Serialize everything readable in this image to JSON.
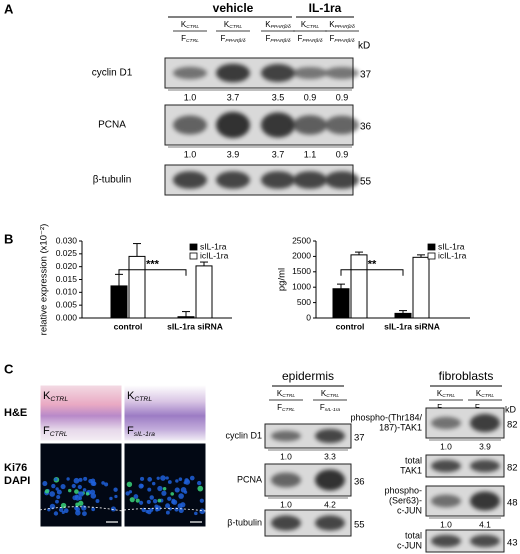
{
  "panel_a": {
    "label": "A",
    "groups": [
      "vehicle",
      "IL-1ra"
    ],
    "lanes": [
      {
        "k": {
          "main": "K",
          "sub": "CTRL"
        },
        "f": {
          "main": "F",
          "sub": "CTRL"
        }
      },
      {
        "k": {
          "main": "K",
          "sub": "CTRL"
        },
        "f": {
          "main": "F",
          "sub": "PPARβ/δ"
        }
      },
      {
        "k": {
          "main": "K",
          "sub": "PPARβ/δ"
        },
        "f": {
          "main": "F",
          "sub": "PPARβ/δ"
        }
      },
      {
        "k": {
          "main": "K",
          "sub": "CTRL"
        },
        "f": {
          "main": "F",
          "sub": "PPARβ/δ"
        }
      },
      {
        "k": {
          "main": "K",
          "sub": "PPARβ/δ"
        },
        "f": {
          "main": "F",
          "sub": "PPARβ/δ"
        }
      }
    ],
    "kd_label": "kD",
    "blots": [
      {
        "name": "cyclin D1",
        "kd": 37,
        "quant": [
          "1.0",
          "3.7",
          "3.5",
          "0.9",
          "0.9"
        ]
      },
      {
        "name": "PCNA",
        "kd": 36,
        "quant": [
          "1.0",
          "3.9",
          "3.7",
          "1.1",
          "0.9"
        ]
      },
      {
        "name": "β-tubulin",
        "kd": 55
      }
    ]
  },
  "panel_b": {
    "label": "B",
    "charts": [
      {
        "type": "bar",
        "y_label": "relative expression (x10⁻²)",
        "categories": [
          "control",
          "sIL-1ra siRNA"
        ],
        "series": [
          {
            "name": "sIL-1ra",
            "color": "#000000",
            "values": [
              0.0125,
              0.0005
            ],
            "errors": [
              0.0045,
              0.002
            ]
          },
          {
            "name": "icIL-1ra",
            "color": "#ffffff",
            "values": [
              0.024,
              0.0203
            ],
            "errors": [
              0.005,
              0.0015
            ]
          }
        ],
        "ylim": [
          0,
          0.03
        ],
        "yticks": [
          {
            "value": 0,
            "label": "0.000"
          },
          {
            "value": 0.005,
            "label": "0.005"
          },
          {
            "value": 0.01,
            "label": "0.010"
          },
          {
            "value": 0.015,
            "label": "0.015"
          },
          {
            "value": 0.02,
            "label": "0.020"
          },
          {
            "value": 0.025,
            "label": "0.025"
          },
          {
            "value": 0.03,
            "label": "0.030"
          }
        ],
        "significance": "***"
      },
      {
        "type": "bar",
        "y_label": "pg/ml",
        "categories": [
          "control",
          "sIL-1ra siRNA"
        ],
        "series": [
          {
            "name": "sIL-1ra",
            "color": "#000000",
            "values": [
              950,
              150
            ],
            "errors": [
              150,
              90
            ]
          },
          {
            "name": "icIL-1ra",
            "color": "#ffffff",
            "values": [
              2050,
              1970
            ],
            "errors": [
              90,
              80
            ]
          }
        ],
        "ylim": [
          0,
          2500
        ],
        "yticks": [
          0,
          500,
          1000,
          1500,
          2000,
          2500
        ],
        "significance": "**"
      }
    ]
  },
  "panel_c": {
    "label": "C",
    "stains": [
      "H&E",
      "Ki76",
      "DAPI"
    ],
    "image_labels": [
      {
        "k": {
          "main": "K",
          "sub": "CTRL"
        },
        "f": {
          "main": "F",
          "sub": "CTRL"
        }
      },
      {
        "k": {
          "main": "K",
          "sub": "CTRL"
        },
        "f": {
          "main": "F",
          "sub": "sIL-1ra"
        }
      }
    ],
    "epidermis": {
      "title": "epidermis",
      "lanes": [
        {
          "k": {
            "main": "K",
            "sub": "CTRL"
          },
          "f": {
            "main": "F",
            "sub": "CTRL"
          }
        },
        {
          "k": {
            "main": "K",
            "sub": "CTRL"
          },
          "f": {
            "main": "F",
            "sub": "sIL-1ra"
          }
        }
      ],
      "blots": [
        {
          "name": [
            "cyclin D1"
          ],
          "kd": 37,
          "quant": [
            "1.0",
            "3.3"
          ]
        },
        {
          "name": [
            "PCNA"
          ],
          "kd": 36,
          "quant": [
            "1.0",
            "4.2"
          ]
        },
        {
          "name": [
            "β-tubulin"
          ],
          "kd": 55
        }
      ]
    },
    "fibroblasts": {
      "title": "fibroblasts",
      "kd_label": "kD",
      "lanes": [
        {
          "k": {
            "main": "K",
            "sub": "CTRL"
          },
          "f": {
            "main": "F",
            "sub": "CTRL"
          }
        },
        {
          "k": {
            "main": "K",
            "sub": "CTRL"
          },
          "f": {
            "main": "F",
            "sub": "sIL-1ra"
          }
        }
      ],
      "blots": [
        {
          "name": [
            "phospho-(Thr184/",
            "187)-TAK1"
          ],
          "kd": 82,
          "quant": [
            "1.0",
            "3.9"
          ]
        },
        {
          "name": [
            "total",
            "TAK1"
          ],
          "kd": 82
        },
        {
          "name": [
            "phospho-",
            "(Ser63)-",
            "c-JUN"
          ],
          "kd": 48,
          "quant": [
            "1.0",
            "4.1"
          ]
        },
        {
          "name": [
            "total",
            "c-JUN"
          ],
          "kd": 43
        }
      ]
    }
  }
}
